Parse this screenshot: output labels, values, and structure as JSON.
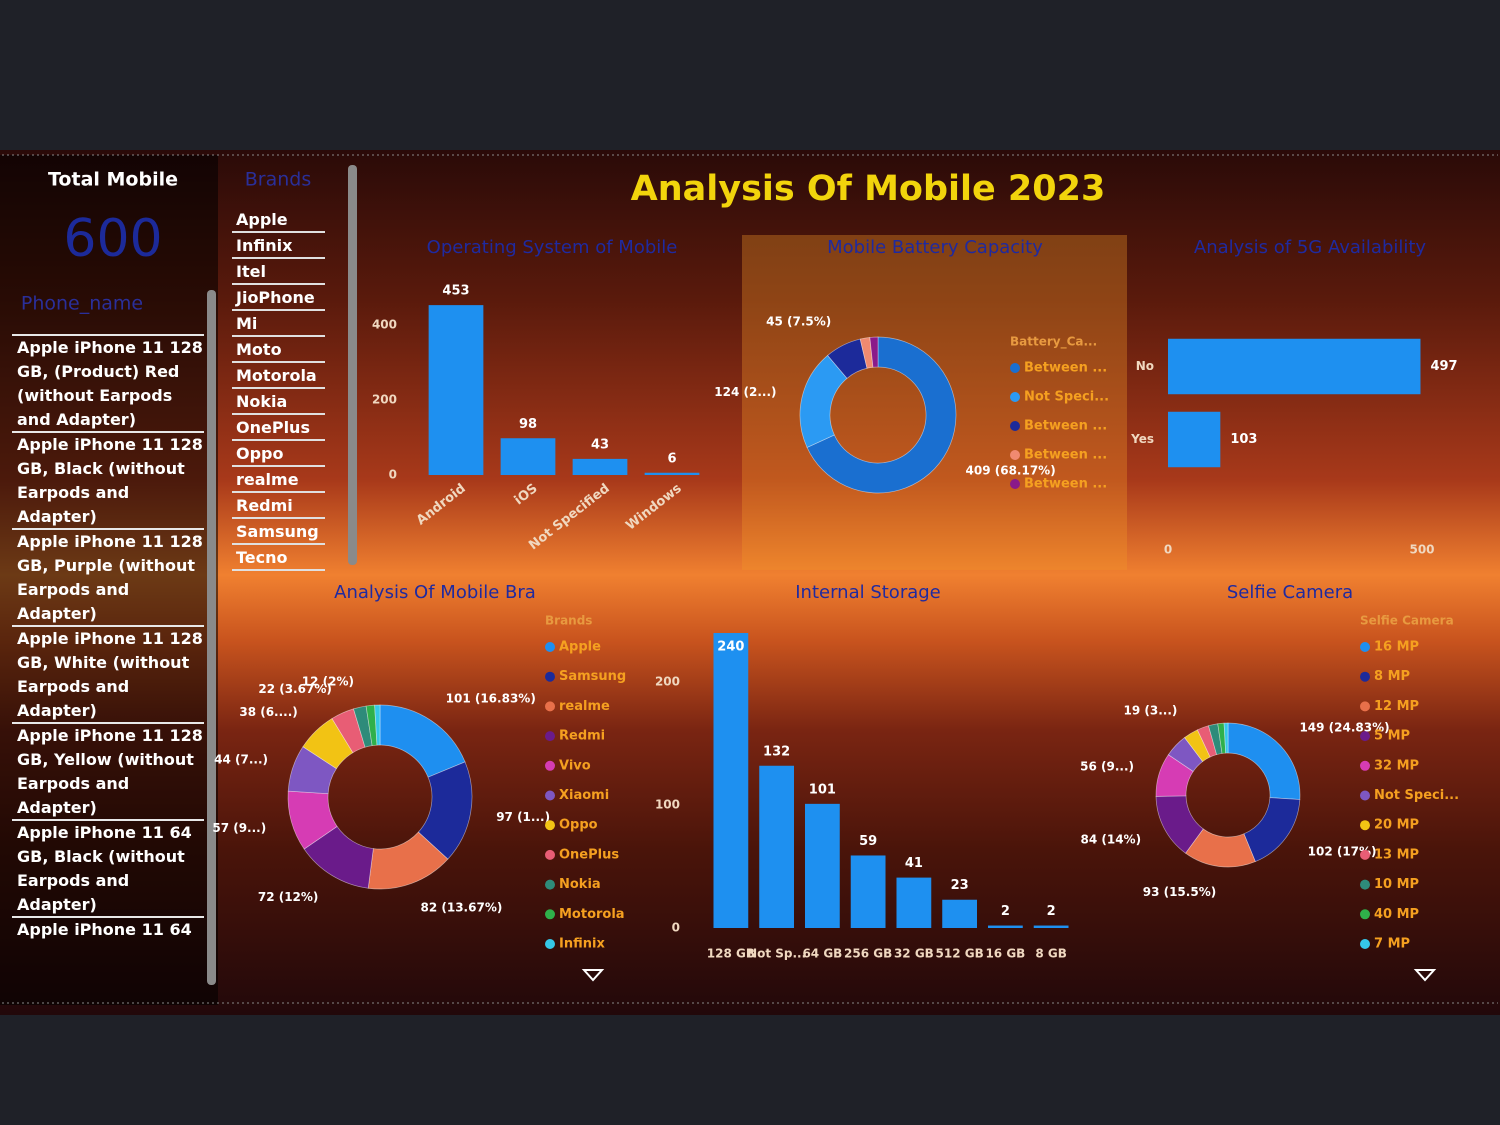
{
  "title": "Analysis Of Mobile 2023",
  "card": {
    "label": "Total Mobile",
    "value": 600
  },
  "phone_slicer": {
    "header": "Phone_name",
    "items": [
      "Apple iPhone 11 128 GB, (Product) Red (without Earpods and Adapter)",
      "Apple iPhone 11 128 GB, Black (without Earpods and Adapter)",
      "Apple iPhone 11 128 GB, Purple (without Earpods and Adapter)",
      "Apple iPhone 11 128 GB, White (without Earpods and Adapter)",
      "Apple iPhone 11 128 GB, Yellow (without Earpods and Adapter)",
      "Apple iPhone 11 64 GB, Black (without Earpods and Adapter)",
      "Apple iPhone 11 64"
    ]
  },
  "brand_slicer": {
    "header": "Brands",
    "items": [
      "Apple",
      "Infinix",
      "Itel",
      "JioPhone",
      "Mi",
      "Moto",
      "Motorola",
      "Nokia",
      "OnePlus",
      "Oppo",
      "realme",
      "Redmi",
      "Samsung",
      "Tecno"
    ]
  },
  "chart_data": [
    {
      "type": "bar",
      "title": "Operating System of Mobile",
      "categories": [
        "Android",
        "iOS",
        "Not Specified",
        "Windows"
      ],
      "values": [
        453,
        98,
        43,
        6
      ],
      "color": "#1e90f0",
      "ylim": [
        0,
        480
      ],
      "yticks": [
        0,
        200,
        400
      ]
    },
    {
      "type": "donut",
      "title": "Mobile Battery Capacity",
      "legend_title": "Battery_Ca...",
      "categories": [
        "Between ...",
        "Not Speci...",
        "Between ...",
        "Between ...",
        "Between ..."
      ],
      "values": [
        409,
        124,
        45,
        12,
        10
      ],
      "value_labels": [
        "409 (68.17%)",
        "124 (2...)",
        "45 (7.5%)",
        null,
        null
      ],
      "colors": [
        "#1a6fd0",
        "#2b9af3",
        "#1c2a9a",
        "#f08a70",
        "#8a1a8a"
      ]
    },
    {
      "type": "bar",
      "horizontal": true,
      "title": "Analysis of 5G Availability",
      "categories": [
        "No",
        "Yes"
      ],
      "values": [
        497,
        103
      ],
      "color": "#1e90f0",
      "xlim": [
        0,
        500
      ],
      "xticks": [
        0,
        500
      ]
    },
    {
      "type": "donut",
      "title": "Analysis Of Mobile Bra",
      "legend_title": "Brands",
      "categories": [
        "Apple",
        "Samsung",
        "realme",
        "Redmi",
        "Vivo",
        "Xiaomi",
        "Oppo",
        "OnePlus",
        "Nokia",
        "Motorola",
        "Infinix"
      ],
      "values": [
        101,
        97,
        82,
        72,
        57,
        44,
        38,
        22,
        12,
        8,
        5
      ],
      "value_labels": [
        "101 (16.83%)",
        "97 (1...)",
        "82 (13.67%)",
        "72 (12%)",
        "57 (9...)",
        "44 (7...)",
        "38 (6....)",
        "22 (3.67%)",
        "12 (2%)",
        null,
        null
      ],
      "colors": [
        "#1e8ff0",
        "#1c2a9a",
        "#e8704a",
        "#6a1b8a",
        "#d63cb4",
        "#7e57c2",
        "#f2c314",
        "#e85d75",
        "#2e8b7a",
        "#2fb04a",
        "#35c8e8"
      ]
    },
    {
      "type": "bar",
      "title": "Internal Storage",
      "categories": [
        "128 GB",
        "Not Sp...",
        "64 GB",
        "256 GB",
        "32 GB",
        "512 GB",
        "16 GB",
        "8 GB"
      ],
      "values": [
        240,
        132,
        101,
        59,
        41,
        23,
        2,
        2
      ],
      "color": "#1e90f0",
      "ylim": [
        0,
        240
      ],
      "yticks": [
        0,
        100,
        200
      ]
    },
    {
      "type": "donut",
      "title": "Selfie Camera",
      "legend_title": "Selfie Camera",
      "categories": [
        "16 MP",
        "8 MP",
        "12 MP",
        "5 MP",
        "32 MP",
        "Not Speci...",
        "20 MP",
        "13 MP",
        "10 MP",
        "40 MP",
        "7 MP"
      ],
      "values": [
        149,
        102,
        93,
        84,
        56,
        30,
        19,
        15,
        12,
        8,
        5
      ],
      "value_labels": [
        "149 (24.83%)",
        "102 (17%)",
        "93 (15.5%)",
        "84 (14%)",
        "56 (9...)",
        null,
        "19 (3...)",
        null,
        null,
        null,
        null
      ],
      "colors": [
        "#1e8ff0",
        "#1c2a9a",
        "#e8704a",
        "#6a1b8a",
        "#d63cb4",
        "#7e57c2",
        "#f2c314",
        "#e85d75",
        "#2e8b7a",
        "#2fb04a",
        "#35c8e8"
      ]
    }
  ]
}
